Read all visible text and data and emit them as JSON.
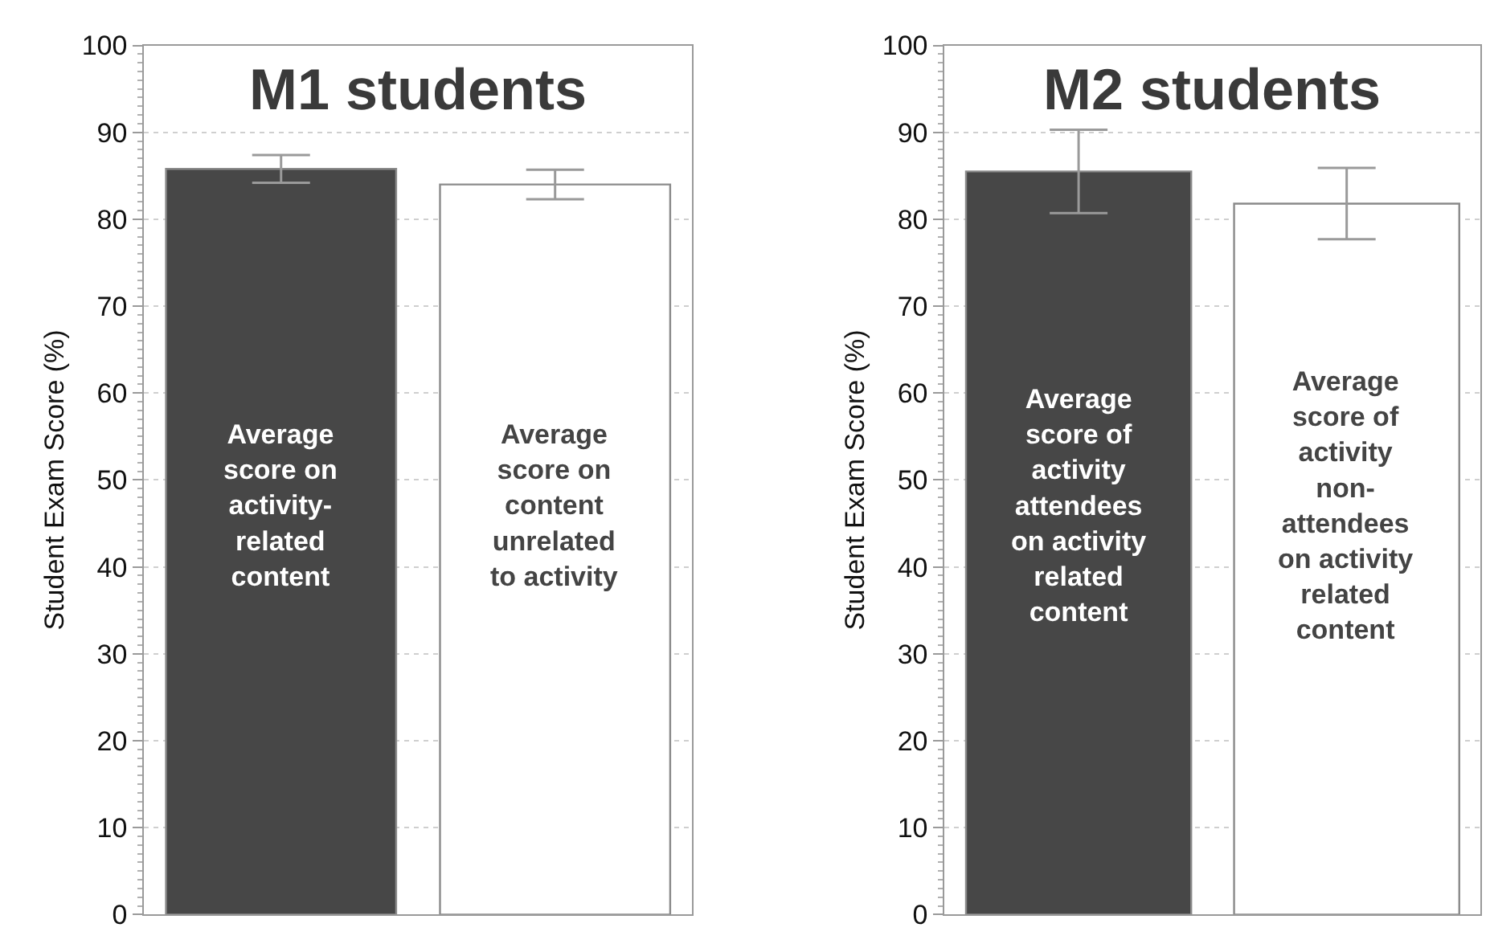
{
  "chart_data": [
    {
      "type": "bar",
      "title": "M1 students",
      "ylabel": "Student Exam Score (%)",
      "categories": [
        "Average\nscore on\nactivity-\nrelated\ncontent",
        "Average\nscore on\ncontent\nunrelated\nto activity"
      ],
      "values": [
        85.8,
        84.0
      ],
      "errors": [
        1.6,
        1.7
      ],
      "colors": [
        "#474747",
        "#ffffff"
      ],
      "ylim": [
        0,
        100
      ],
      "yticks": [
        0,
        10,
        20,
        30,
        40,
        50,
        60,
        70,
        80,
        90,
        100
      ],
      "grid": "y",
      "tick_labels": "y"
    },
    {
      "type": "bar",
      "title": "M2 students",
      "ylabel": "Student Exam Score (%)",
      "categories": [
        "Average\nscore of\nactivity\nattendees\non activity\nrelated\ncontent",
        "Average\nscore of\nactivity\nnon-\nattendees\non activity\nrelated\ncontent"
      ],
      "values": [
        85.5,
        81.8
      ],
      "errors": [
        4.8,
        4.1
      ],
      "colors": [
        "#474747",
        "#ffffff"
      ],
      "ylim": [
        0,
        100
      ],
      "yticks": [
        0,
        10,
        20,
        30,
        40,
        50,
        60,
        70,
        80,
        90,
        100
      ],
      "grid": "y",
      "tick_labels": "y"
    }
  ]
}
